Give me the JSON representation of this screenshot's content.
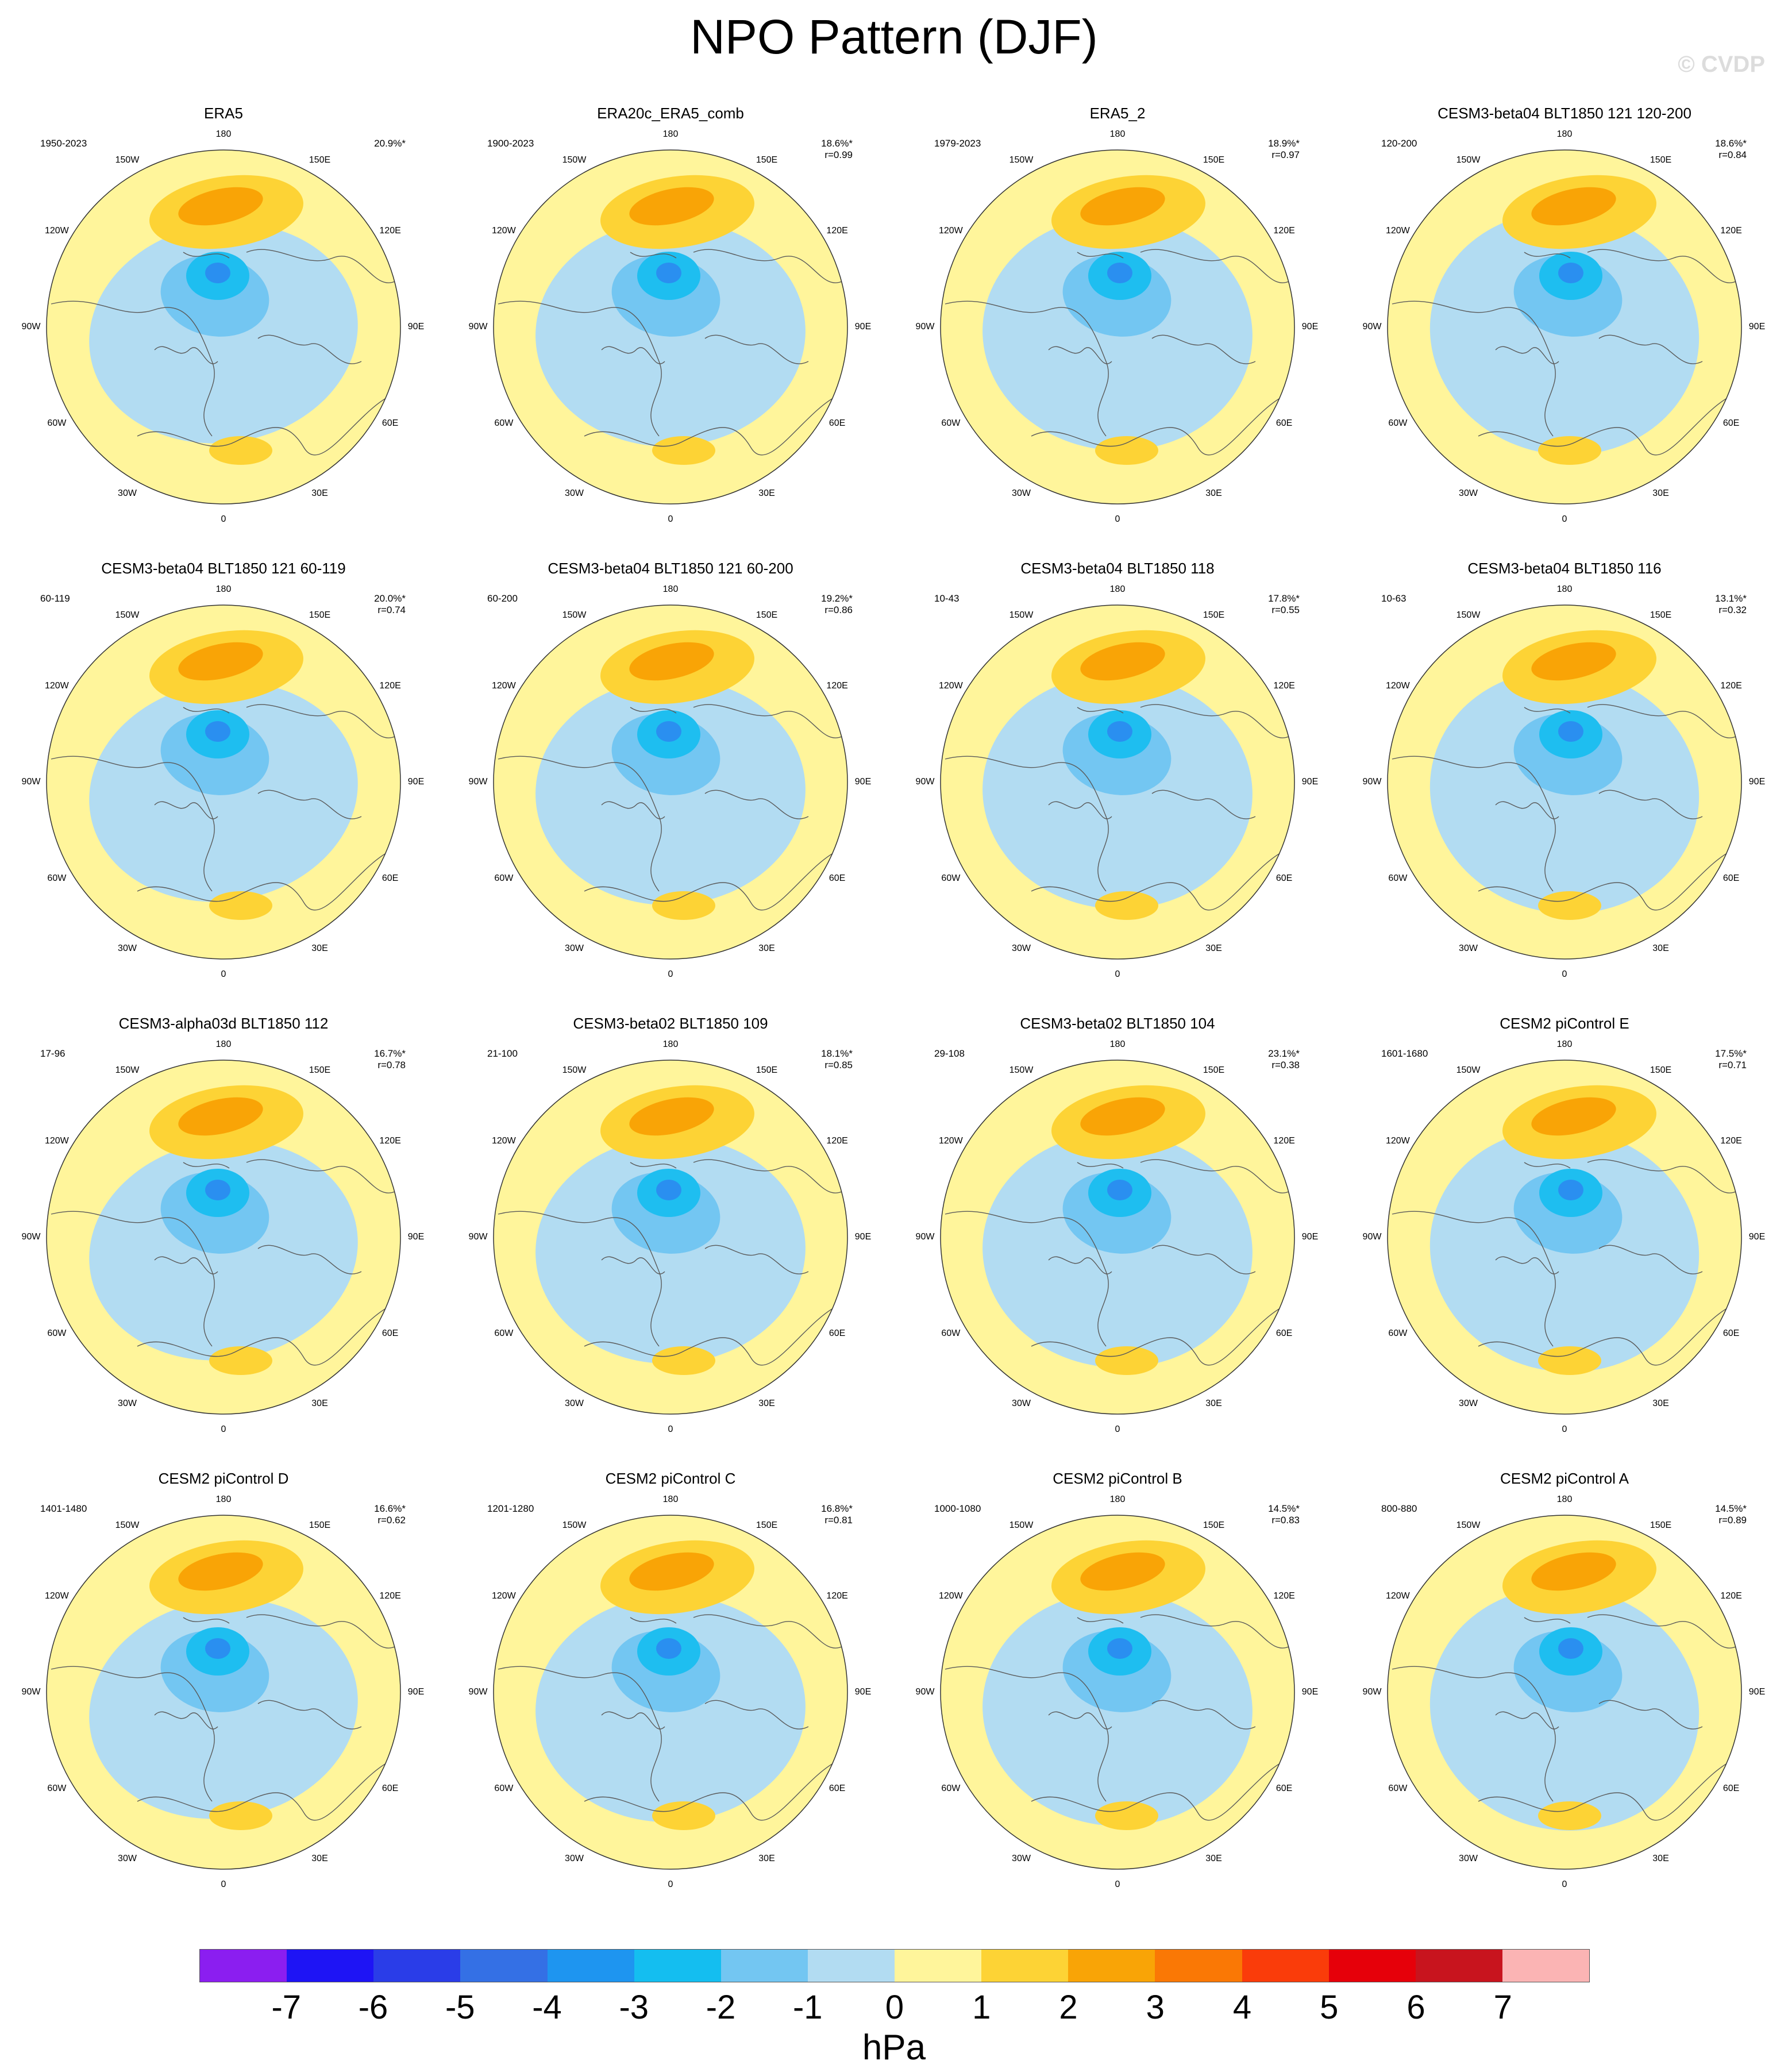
{
  "title": "NPO Pattern (DJF)",
  "watermark": "© CVDP",
  "colors": {
    "cm1": "#b2dcf2",
    "cm2": "#73c6f2",
    "cm3": "#1ebef0",
    "cm4": "#2a8ff0",
    "cp1": "#fff59b",
    "cp2": "#fdd335",
    "cp3": "#f9a406",
    "coast": "#5a5a5a",
    "grid": "#999999"
  },
  "lon_labels": [
    "180",
    "150E",
    "120E",
    "90E",
    "60E",
    "30E",
    "0",
    "30W",
    "60W",
    "90W",
    "120W",
    "150W"
  ],
  "panels": [
    {
      "title": "ERA5",
      "period": "1950-2023",
      "pct": "20.9%*",
      "r": ""
    },
    {
      "title": "ERA20c_ERA5_comb",
      "period": "1900-2023",
      "pct": "18.6%*",
      "r": "r=0.99"
    },
    {
      "title": "ERA5_2",
      "period": "1979-2023",
      "pct": "18.9%*",
      "r": "r=0.97"
    },
    {
      "title": "CESM3-beta04 BLT1850 121 120-200",
      "period": "120-200",
      "pct": "18.6%*",
      "r": "r=0.84"
    },
    {
      "title": "CESM3-beta04 BLT1850 121 60-119",
      "period": "60-119",
      "pct": "20.0%*",
      "r": "r=0.74"
    },
    {
      "title": "CESM3-beta04 BLT1850 121 60-200",
      "period": "60-200",
      "pct": "19.2%*",
      "r": "r=0.86"
    },
    {
      "title": "CESM3-beta04 BLT1850 118",
      "period": "10-43",
      "pct": "17.8%*",
      "r": "r=0.55"
    },
    {
      "title": "CESM3-beta04 BLT1850 116",
      "period": "10-63",
      "pct": "13.1%*",
      "r": "r=0.32"
    },
    {
      "title": "CESM3-alpha03d BLT1850 112",
      "period": "17-96",
      "pct": "16.7%*",
      "r": "r=0.78"
    },
    {
      "title": "CESM3-beta02 BLT1850 109",
      "period": "21-100",
      "pct": "18.1%*",
      "r": "r=0.85"
    },
    {
      "title": "CESM3-beta02 BLT1850 104",
      "period": "29-108",
      "pct": "23.1%*",
      "r": "r=0.38"
    },
    {
      "title": "CESM2 piControl E",
      "period": "1601-1680",
      "pct": "17.5%*",
      "r": "r=0.71"
    },
    {
      "title": "CESM2 piControl D",
      "period": "1401-1480",
      "pct": "16.6%*",
      "r": "r=0.62"
    },
    {
      "title": "CESM2 piControl C",
      "period": "1201-1280",
      "pct": "16.8%*",
      "r": "r=0.81"
    },
    {
      "title": "CESM2 piControl B",
      "period": "1000-1080",
      "pct": "14.5%*",
      "r": "r=0.83"
    },
    {
      "title": "CESM2 piControl A",
      "period": "800-880",
      "pct": "14.5%*",
      "r": "r=0.89"
    }
  ],
  "colorbar": {
    "colors": [
      "#8b1ef0",
      "#1e14f5",
      "#2a3de8",
      "#3470e5",
      "#1e95f0",
      "#14bef0",
      "#73c6f2",
      "#b2dcf2",
      "#fff59b",
      "#fdd335",
      "#f9a406",
      "#fa7805",
      "#fa3c0a",
      "#e6000a",
      "#c8141e",
      "#fbb4b4"
    ],
    "labels": [
      "-7",
      "-6",
      "-5",
      "-4",
      "-3",
      "-2",
      "-1",
      "0",
      "1",
      "2",
      "3",
      "4",
      "5",
      "6",
      "7"
    ],
    "units": "hPa"
  }
}
